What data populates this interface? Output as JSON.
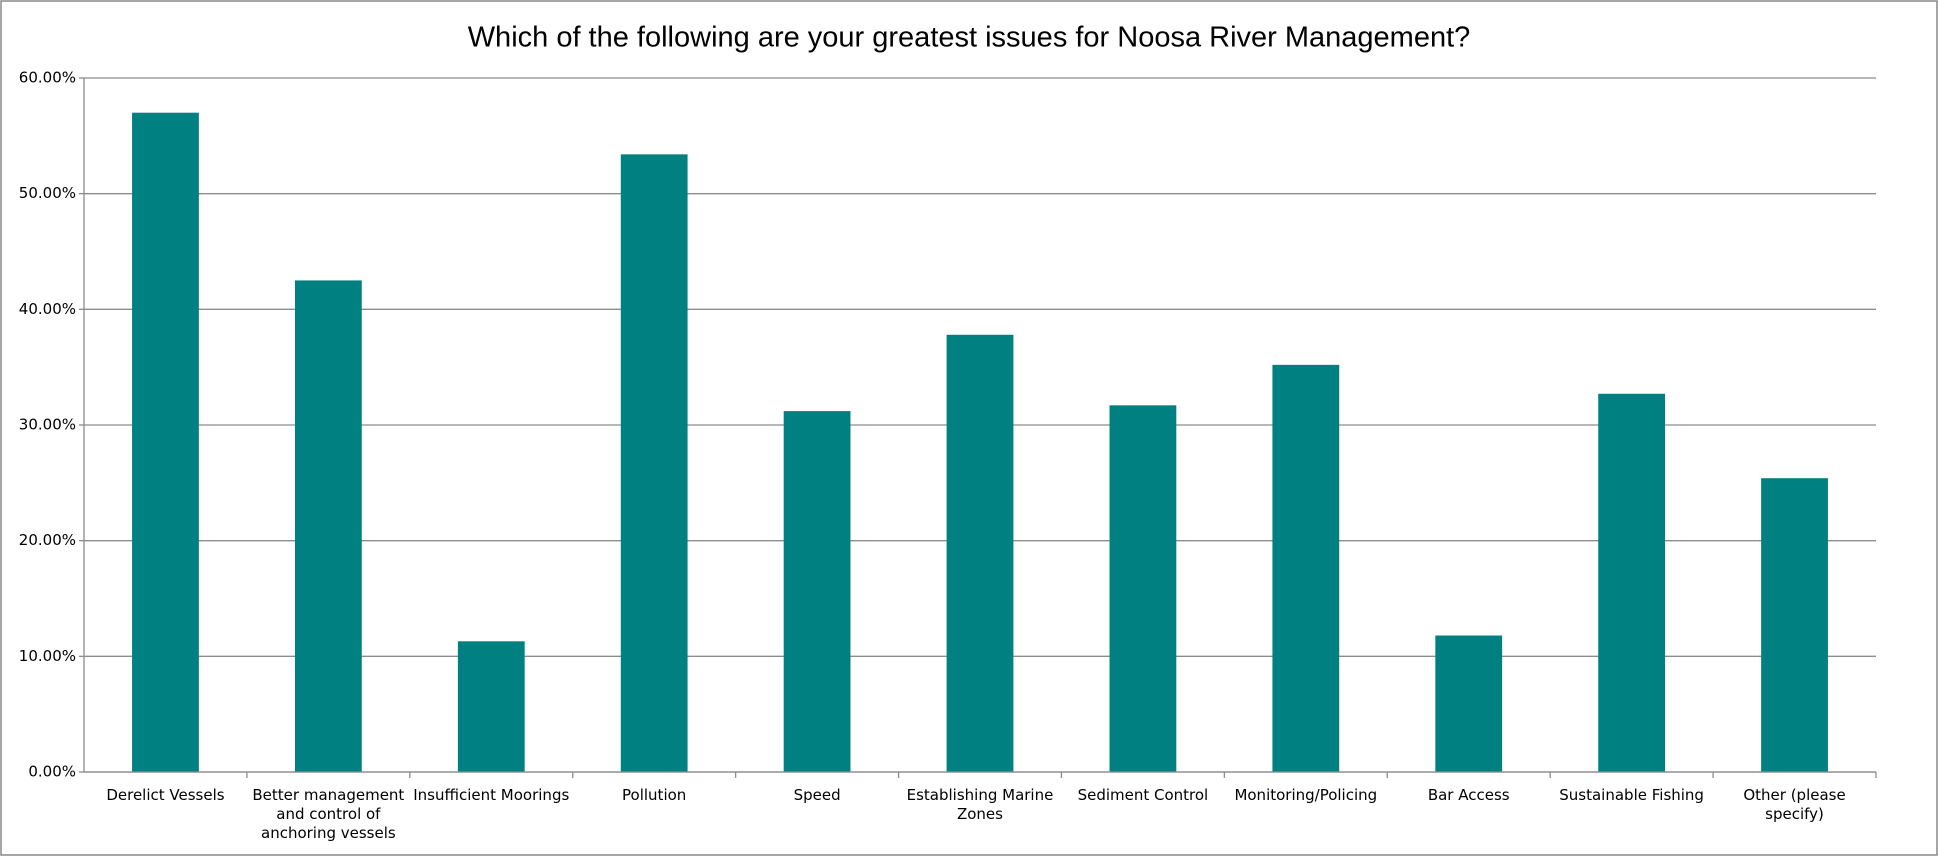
{
  "chart_data": {
    "type": "bar",
    "title": "Which of the following are your greatest issues for Noosa River Management?",
    "categories": [
      "Derelict Vessels",
      "Better management and control of anchoring vessels",
      "Insufficient Moorings",
      "Pollution",
      "Speed",
      "Establishing Marine Zones",
      "Sediment Control",
      "Monitoring/Policing",
      "Bar Access",
      "Sustainable Fishing",
      "Other (please specify)"
    ],
    "values": [
      57.0,
      42.5,
      11.3,
      53.4,
      31.2,
      37.8,
      31.7,
      35.2,
      11.8,
      32.7,
      25.4
    ],
    "color": "#008080",
    "ylim": [
      0,
      60
    ],
    "yticks": [
      {
        "value": 0,
        "label": "0.00%"
      },
      {
        "value": 10,
        "label": "10.00%"
      },
      {
        "value": 20,
        "label": "20.00%"
      },
      {
        "value": 30,
        "label": "30.00%"
      },
      {
        "value": 40,
        "label": "40.00%"
      },
      {
        "value": 50,
        "label": "50.00%"
      },
      {
        "value": 60,
        "label": "60.00%"
      }
    ],
    "grid": true
  }
}
